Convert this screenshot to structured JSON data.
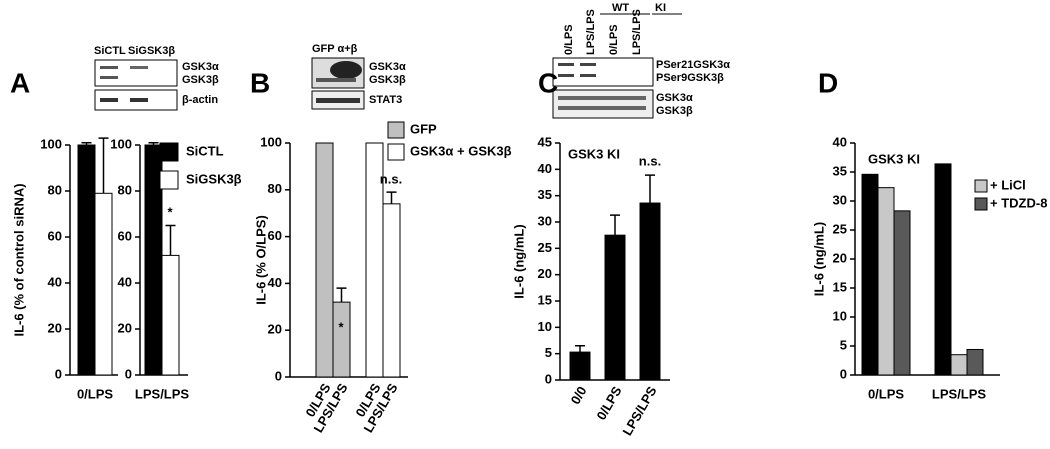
{
  "chart_data": [
    {
      "type": "bar",
      "panel_label": "A",
      "y_label": "IL-6 (% of control siRNA)",
      "categories": [
        "0/LPS",
        "LPS/LPS"
      ],
      "series": [
        {
          "name": "SiCTL",
          "color": "#000000",
          "values": [
            100,
            100
          ],
          "errors": [
            1,
            1
          ]
        },
        {
          "name": "SiGSK3β",
          "color": "#ffffff",
          "values": [
            79,
            52
          ],
          "errors": [
            24,
            13
          ]
        }
      ],
      "ylim": [
        0,
        100
      ],
      "yticks": [
        0,
        20,
        40,
        60,
        80,
        100
      ],
      "annotations": [
        "*"
      ],
      "blot": {
        "columns": [
          "SiCTL",
          "SiGSK3β"
        ],
        "rows": [
          "GSK3α",
          "GSK3β",
          "β-actin"
        ]
      }
    },
    {
      "type": "bar",
      "panel_label": "B",
      "y_label": "IL-6 (% O/LPS)",
      "categories": [
        "0/LPS",
        "LPS/LPS",
        "0/LPS",
        "LPS/LPS"
      ],
      "series": [
        {
          "name": "GFP",
          "color": "#c0c0c0",
          "values": [
            100,
            32,
            null,
            null
          ],
          "errors": [
            null,
            6,
            null,
            null
          ]
        },
        {
          "name": "GSK3α + GSK3β",
          "color": "#ffffff",
          "values": [
            null,
            null,
            100,
            74
          ],
          "errors": [
            null,
            null,
            null,
            5
          ]
        }
      ],
      "ylim": [
        0,
        100
      ],
      "yticks": [
        0,
        20,
        40,
        60,
        80,
        100
      ],
      "annotations": [
        "*",
        "n.s."
      ],
      "blot": {
        "columns": [
          "GFP α+β"
        ],
        "rows": [
          "GSK3α",
          "GSK3β",
          "STAT3"
        ]
      }
    },
    {
      "type": "bar",
      "panel_label": "C",
      "y_label": "IL-6 (ng/mL)",
      "subtitle": "GSK3 KI",
      "categories": [
        "0/0",
        "0/LPS",
        "LPS/LPS"
      ],
      "series": [
        {
          "color": "#000000",
          "values": [
            5.3,
            27.5,
            33.6
          ],
          "errors": [
            1.2,
            3.8,
            5.3
          ]
        }
      ],
      "ylim": [
        0,
        45
      ],
      "yticks": [
        0,
        5,
        10,
        15,
        20,
        25,
        30,
        35,
        40,
        45
      ],
      "annotations": [
        "n.s."
      ],
      "blot": {
        "groups": [
          "WT",
          "KI"
        ],
        "columns": [
          "0/LPS",
          "LPS/LPS",
          "0/LPS",
          "LPS/LPS"
        ],
        "rows": [
          "PSer21GSK3α",
          "PSer9GSK3β",
          "GSK3α",
          "GSK3β"
        ]
      }
    },
    {
      "type": "bar",
      "panel_label": "D",
      "y_label": "IL-6 (ng/mL)",
      "subtitle": "GSK3 KI",
      "categories": [
        "0/LPS",
        "LPS/LPS"
      ],
      "series": [
        {
          "color": "#000000",
          "values": [
            34.6,
            36.4
          ]
        },
        {
          "name": "+ LiCl",
          "color": "#c8c8c8",
          "values": [
            32.3,
            3.5
          ]
        },
        {
          "name": "+ TDZD-8",
          "color": "#595959",
          "values": [
            28.3,
            4.4
          ]
        }
      ],
      "ylim": [
        0,
        40
      ],
      "yticks": [
        0,
        5,
        10,
        15,
        20,
        25,
        30,
        35,
        40
      ]
    }
  ]
}
